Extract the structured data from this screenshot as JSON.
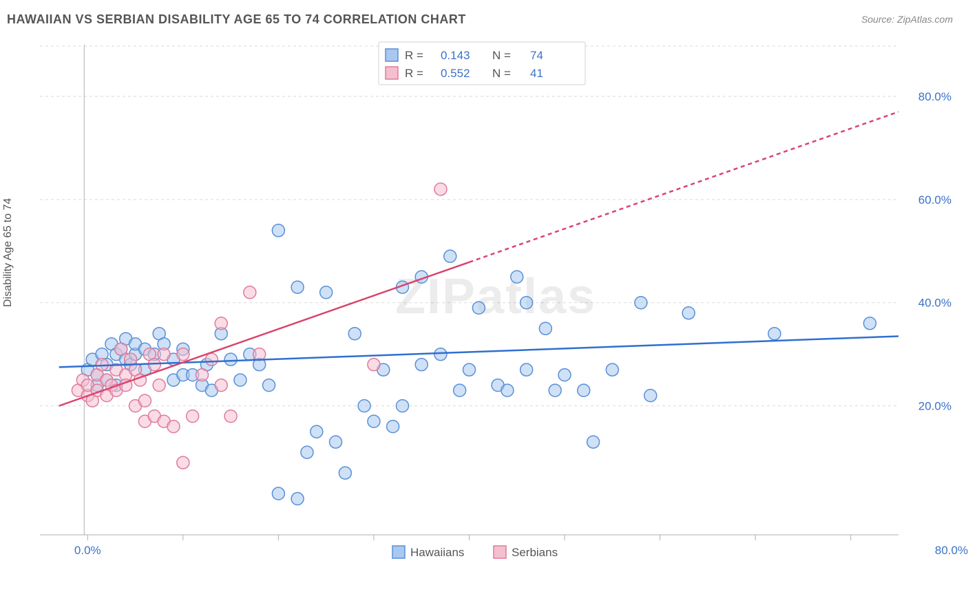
{
  "title": "HAWAIIAN VS SERBIAN DISABILITY AGE 65 TO 74 CORRELATION CHART",
  "source_label": "Source: ZipAtlas.com",
  "y_axis_label": "Disability Age 65 to 74",
  "watermark": "ZIPatlas",
  "chart": {
    "type": "scatter",
    "xlim": [
      -5,
      85
    ],
    "ylim": [
      -5,
      90
    ],
    "x_min_label": "0.0%",
    "x_max_label": "80.0%",
    "y_ticks": [
      20,
      40,
      60,
      80
    ],
    "y_tick_labels": [
      "20.0%",
      "40.0%",
      "60.0%",
      "80.0%"
    ],
    "x_tick_positions": [
      0,
      10,
      20,
      30,
      40,
      50,
      60,
      70,
      80
    ],
    "background_color": "#ffffff",
    "grid_color": "#d9d9d9",
    "axis_color": "#b0b0b0",
    "marker_radius": 9,
    "marker_opacity": 0.55,
    "series": [
      {
        "name": "Hawaiians",
        "fill": "#a8c8ef",
        "stroke": "#5a8fd6",
        "trend_color": "#2f6fd0",
        "trend": {
          "x1": -3,
          "y1": 27.5,
          "x2": 85,
          "y2": 33.5,
          "dash_from_x": null
        },
        "R": "0.143",
        "N": "74",
        "points": [
          [
            0,
            27
          ],
          [
            0.5,
            29
          ],
          [
            1,
            26
          ],
          [
            1,
            24
          ],
          [
            1.5,
            30
          ],
          [
            2,
            28
          ],
          [
            2,
            25
          ],
          [
            2.5,
            32
          ],
          [
            3,
            30
          ],
          [
            3,
            24
          ],
          [
            3.5,
            31
          ],
          [
            4,
            29
          ],
          [
            4,
            33
          ],
          [
            4.5,
            28
          ],
          [
            5,
            30
          ],
          [
            5,
            32
          ],
          [
            6,
            31
          ],
          [
            6,
            27
          ],
          [
            7,
            30
          ],
          [
            7.5,
            34
          ],
          [
            8,
            32
          ],
          [
            9,
            25
          ],
          [
            9,
            29
          ],
          [
            10,
            26
          ],
          [
            10,
            31
          ],
          [
            11,
            26
          ],
          [
            12,
            24
          ],
          [
            12.5,
            28
          ],
          [
            13,
            23
          ],
          [
            14,
            34
          ],
          [
            15,
            29
          ],
          [
            16,
            25
          ],
          [
            17,
            30
          ],
          [
            18,
            28
          ],
          [
            19,
            24
          ],
          [
            20,
            54
          ],
          [
            20,
            3
          ],
          [
            22,
            43
          ],
          [
            22,
            2
          ],
          [
            23,
            11
          ],
          [
            24,
            15
          ],
          [
            25,
            42
          ],
          [
            26,
            13
          ],
          [
            27,
            7
          ],
          [
            28,
            34
          ],
          [
            29,
            20
          ],
          [
            30,
            17
          ],
          [
            31,
            27
          ],
          [
            32,
            16
          ],
          [
            33,
            43
          ],
          [
            33,
            20
          ],
          [
            35,
            45
          ],
          [
            35,
            28
          ],
          [
            37,
            30
          ],
          [
            38,
            49
          ],
          [
            39,
            23
          ],
          [
            40,
            27
          ],
          [
            41,
            39
          ],
          [
            43,
            24
          ],
          [
            44,
            23
          ],
          [
            46,
            40
          ],
          [
            46,
            27
          ],
          [
            48,
            35
          ],
          [
            49,
            23
          ],
          [
            50,
            26
          ],
          [
            52,
            23
          ],
          [
            53,
            13
          ],
          [
            55,
            27
          ],
          [
            58,
            40
          ],
          [
            59,
            22
          ],
          [
            63,
            38
          ],
          [
            72,
            34
          ],
          [
            82,
            36
          ],
          [
            45,
            45
          ]
        ]
      },
      {
        "name": "Serbians",
        "fill": "#f4bfcf",
        "stroke": "#e07a9a",
        "trend_color": "#d9446e",
        "trend": {
          "x1": -3,
          "y1": 20,
          "x2": 85,
          "y2": 77,
          "dash_from_x": 40
        },
        "R": "0.552",
        "N": "41",
        "points": [
          [
            -1,
            23
          ],
          [
            -0.5,
            25
          ],
          [
            0,
            22
          ],
          [
            0,
            24
          ],
          [
            0.5,
            21
          ],
          [
            1,
            26
          ],
          [
            1,
            23
          ],
          [
            1.5,
            28
          ],
          [
            2,
            25
          ],
          [
            2,
            22
          ],
          [
            2.5,
            24
          ],
          [
            3,
            27
          ],
          [
            3,
            23
          ],
          [
            3.5,
            31
          ],
          [
            4,
            26
          ],
          [
            4,
            24
          ],
          [
            4.5,
            29
          ],
          [
            5,
            27
          ],
          [
            5,
            20
          ],
          [
            5.5,
            25
          ],
          [
            6,
            17
          ],
          [
            6,
            21
          ],
          [
            6.5,
            30
          ],
          [
            7,
            28
          ],
          [
            7,
            18
          ],
          [
            7.5,
            24
          ],
          [
            8,
            17
          ],
          [
            8,
            30
          ],
          [
            9,
            16
          ],
          [
            10,
            9
          ],
          [
            10,
            30
          ],
          [
            11,
            18
          ],
          [
            12,
            26
          ],
          [
            13,
            29
          ],
          [
            14,
            24
          ],
          [
            14,
            36
          ],
          [
            15,
            18
          ],
          [
            17,
            42
          ],
          [
            18,
            30
          ],
          [
            30,
            28
          ],
          [
            37,
            62
          ]
        ]
      }
    ]
  },
  "legend_top": {
    "rows": [
      {
        "swatch_fill": "#a8c8ef",
        "swatch_stroke": "#5a8fd6",
        "R_label": "R  =",
        "R_value": "0.143",
        "N_label": "N  =",
        "N_value": "74"
      },
      {
        "swatch_fill": "#f4bfcf",
        "swatch_stroke": "#e07a9a",
        "R_label": "R  =",
        "R_value": "0.552",
        "N_label": "N  =",
        "N_value": "41"
      }
    ]
  },
  "legend_bottom": {
    "items": [
      {
        "swatch_fill": "#a8c8ef",
        "swatch_stroke": "#5a8fd6",
        "label": "Hawaiians"
      },
      {
        "swatch_fill": "#f4bfcf",
        "swatch_stroke": "#e07a9a",
        "label": "Serbians"
      }
    ]
  }
}
